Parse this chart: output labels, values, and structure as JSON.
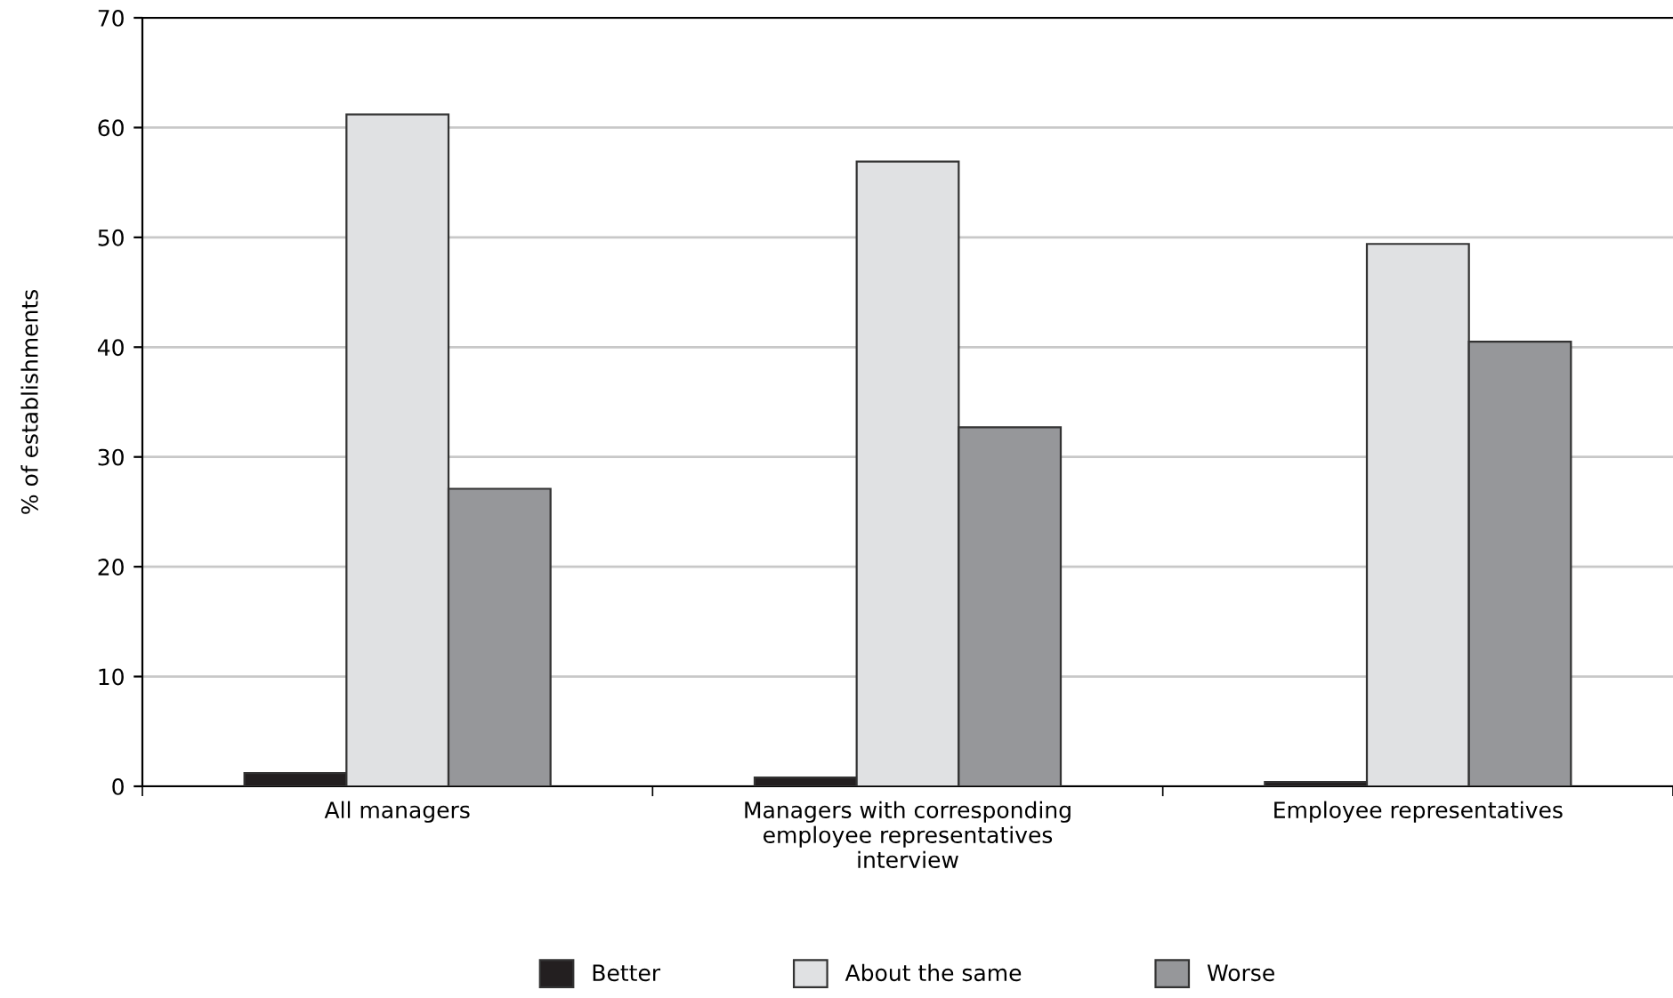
{
  "chart_data": {
    "type": "bar",
    "ylabel": "% of establishments",
    "categories": [
      "All managers",
      "Managers with corresponding\nemployee representatives\ninterview",
      "Employee representatives"
    ],
    "series": [
      {
        "name": "Better",
        "color": "#231f20",
        "values": [
          1.2,
          0.8,
          0.4
        ]
      },
      {
        "name": "About the same",
        "color": "#e0e1e3",
        "values": [
          61.2,
          56.9,
          49.4
        ]
      },
      {
        "name": "Worse",
        "color": "#96979a",
        "values": [
          27.1,
          32.7,
          40.5
        ]
      }
    ],
    "ylim": [
      0,
      70
    ],
    "yticks": [
      0,
      10,
      20,
      30,
      40,
      50,
      60,
      70
    ],
    "grid": "y",
    "legend": "bottom"
  }
}
